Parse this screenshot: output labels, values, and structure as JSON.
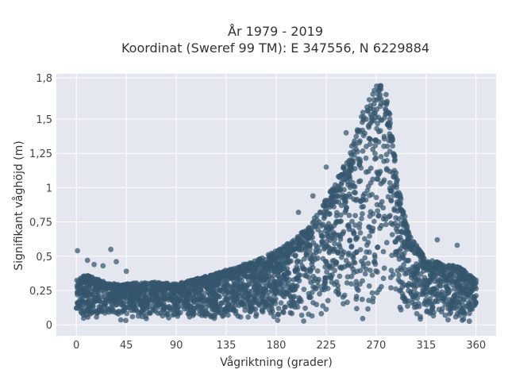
{
  "chart_data": {
    "type": "scatter",
    "title_lines": [
      "År 1979 - 2019",
      "Koordinat (Sweref 99 TM): E 347556, N 6229884"
    ],
    "xlabel": "Vågriktning (grader)",
    "ylabel": "Signifikant våghöjd (m)",
    "xlim": [
      -18,
      378
    ],
    "ylim": [
      -0.08,
      1.83
    ],
    "xticks": [
      {
        "value": 0,
        "label": "0"
      },
      {
        "value": 45,
        "label": "45"
      },
      {
        "value": 90,
        "label": "90"
      },
      {
        "value": 135,
        "label": "135"
      },
      {
        "value": 180,
        "label": "180"
      },
      {
        "value": 225,
        "label": "225"
      },
      {
        "value": 270,
        "label": "270"
      },
      {
        "value": 315,
        "label": "315"
      },
      {
        "value": 360,
        "label": "360"
      }
    ],
    "yticks": [
      {
        "value": 0,
        "label": "0"
      },
      {
        "value": 0.25,
        "label": "0,25"
      },
      {
        "value": 0.5,
        "label": "0,5"
      },
      {
        "value": 0.75,
        "label": "0,75"
      },
      {
        "value": 1,
        "label": "1"
      },
      {
        "value": 1.25,
        "label": "1,25"
      },
      {
        "value": 1.5,
        "label": "1,5"
      },
      {
        "value": 1.8,
        "label": "1,8"
      }
    ],
    "grid": true,
    "marker_color": "#34566e",
    "background_color": "#e5e7f0",
    "envelope": {
      "direction": [
        0,
        10,
        20,
        30,
        45,
        60,
        75,
        90,
        105,
        120,
        135,
        150,
        165,
        180,
        195,
        210,
        225,
        240,
        250,
        258,
        265,
        270,
        275,
        280,
        285,
        290,
        300,
        315,
        330,
        345,
        360
      ],
      "height_upper": [
        0.35,
        0.36,
        0.33,
        0.3,
        0.3,
        0.31,
        0.31,
        0.3,
        0.33,
        0.36,
        0.4,
        0.44,
        0.48,
        0.54,
        0.62,
        0.72,
        0.92,
        1.15,
        1.35,
        1.55,
        1.68,
        1.75,
        1.76,
        1.7,
        1.4,
        1.0,
        0.65,
        0.48,
        0.45,
        0.42,
        0.33
      ]
    },
    "outliers": [
      {
        "x": 1,
        "y": 0.54
      },
      {
        "x": 10,
        "y": 0.47
      },
      {
        "x": 16,
        "y": 0.44
      },
      {
        "x": 24,
        "y": 0.43
      },
      {
        "x": 31,
        "y": 0.55
      },
      {
        "x": 36,
        "y": 0.46
      },
      {
        "x": 45,
        "y": 0.39
      },
      {
        "x": 200,
        "y": 0.82
      },
      {
        "x": 213,
        "y": 0.94
      },
      {
        "x": 225,
        "y": 1.15
      },
      {
        "x": 243,
        "y": 1.4
      },
      {
        "x": 325,
        "y": 0.62
      },
      {
        "x": 343,
        "y": 0.58
      }
    ]
  }
}
